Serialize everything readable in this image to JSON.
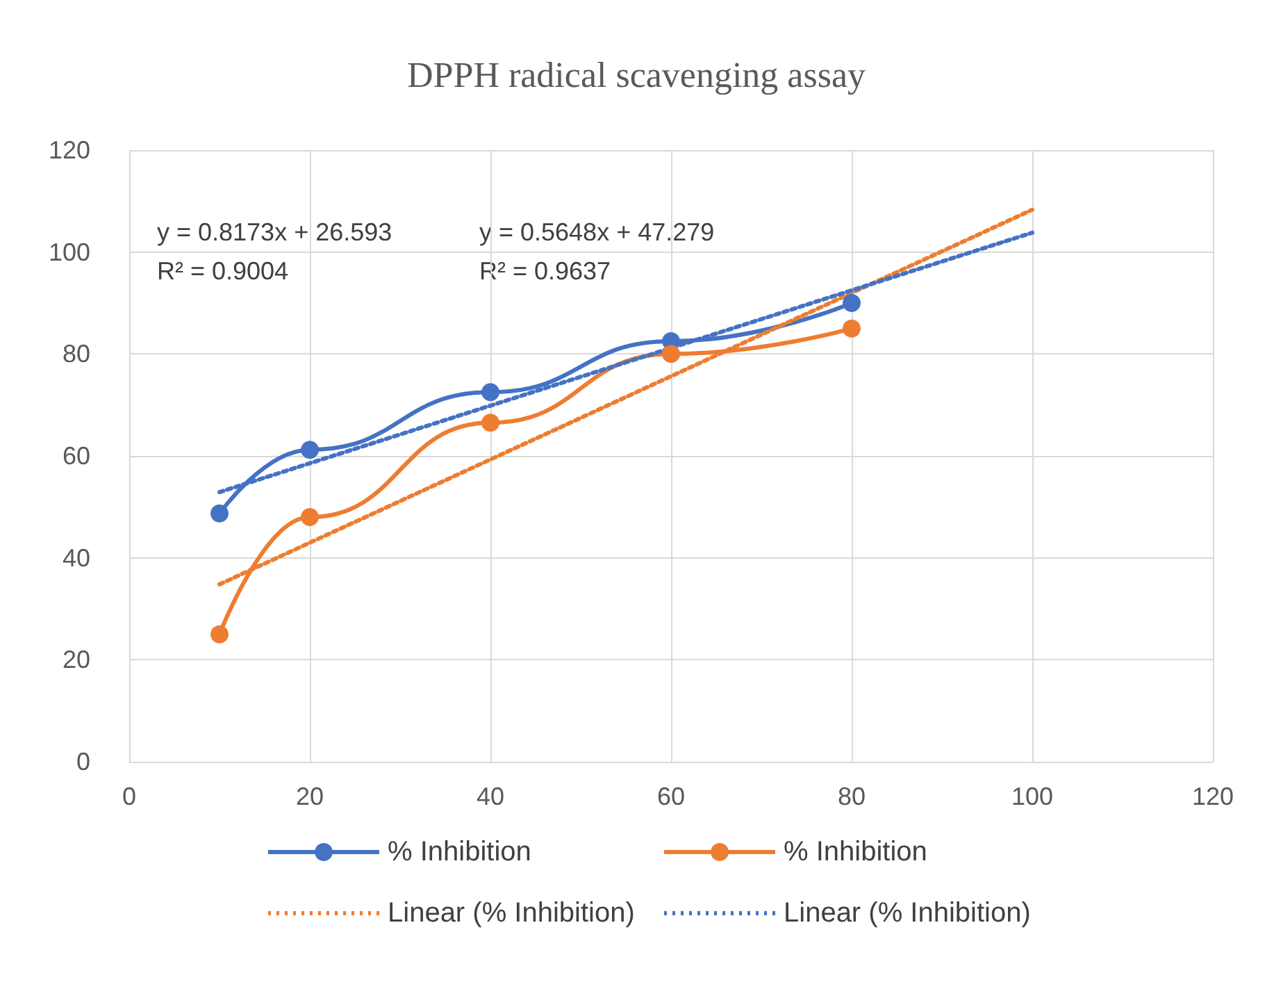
{
  "chart_data": {
    "type": "line",
    "title": "DPPH radical scavenging assay",
    "xlim": [
      0,
      120
    ],
    "xticks": [
      0,
      20,
      40,
      60,
      80,
      100,
      120
    ],
    "ylim": [
      0,
      120
    ],
    "yticks": [
      0,
      20,
      40,
      60,
      80,
      100,
      120
    ],
    "grid": true,
    "legend": "bottom",
    "annotations": [
      "y = 0.8173x + 26.593\nR² = 0.9004",
      "y = 0.5648x + 47.279\nR² = 0.9637"
    ],
    "series": [
      {
        "name": "% Inhibition",
        "color": "#4472c4",
        "x": [
          10,
          20,
          40,
          60,
          80
        ],
        "values": [
          48.7,
          61.2,
          72.5,
          82.5,
          90
        ],
        "marker": "circle",
        "line_style": "solid"
      },
      {
        "name": "% Inhibition",
        "color": "#ed7d31",
        "x": [
          10,
          20,
          40,
          60,
          80
        ],
        "values": [
          25,
          48,
          66.5,
          80,
          85
        ],
        "marker": "circle",
        "line_style": "solid"
      },
      {
        "name": "Linear (% Inhibition)",
        "color": "#ed7d31",
        "x": [
          10,
          100
        ],
        "values": [
          34.8,
          108.3
        ],
        "marker": "none",
        "line_style": "dotted"
      },
      {
        "name": "Linear (% Inhibition)",
        "color": "#4472c4",
        "x": [
          10,
          100
        ],
        "values": [
          52.9,
          103.8
        ],
        "marker": "none",
        "line_style": "dotted"
      }
    ]
  }
}
